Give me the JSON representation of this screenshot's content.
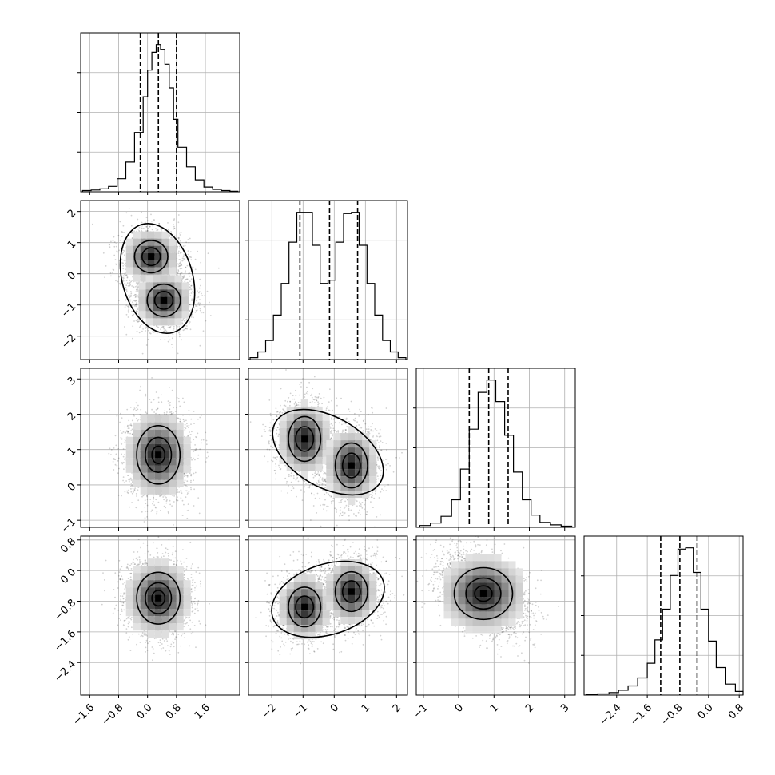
{
  "chart_data": {
    "type": "corner",
    "grid": true,
    "parameters": [
      {
        "mean": 0.3,
        "sd": 0.4,
        "bimodal": false,
        "hist_range": [
          -1.85,
          2.55
        ],
        "quantiles": [
          -0.2,
          0.3,
          0.8
        ],
        "ticks": [
          -1.6,
          -0.8,
          0.0,
          0.8,
          1.6
        ],
        "tick_labels": [
          "−1.6",
          "−0.8",
          "0.0",
          "0.8",
          "1.6"
        ]
      },
      {
        "mean": -0.2,
        "sd": 1.0,
        "bimodal": true,
        "modes": [
          -0.95,
          0.55
        ],
        "mode_sd": 0.45,
        "hist_range": [
          -2.75,
          2.35
        ],
        "quantiles": [
          -1.1,
          -0.15,
          0.75
        ],
        "ticks": [
          -2,
          -1,
          0,
          1,
          2
        ],
        "tick_labels": [
          "−2",
          "−1",
          "0",
          "1",
          "2"
        ]
      },
      {
        "mean": 0.85,
        "sd": 0.55,
        "bimodal": false,
        "hist_range": [
          -1.2,
          3.3
        ],
        "quantiles": [
          0.3,
          0.85,
          1.4
        ],
        "ticks": [
          -1,
          0,
          1,
          2,
          3
        ],
        "tick_labels": [
          "−1",
          "0",
          "1",
          "2",
          "3"
        ]
      },
      {
        "mean": -0.75,
        "sd": 0.45,
        "bimodal": false,
        "hist_range": [
          -3.25,
          0.9
        ],
        "quantiles": [
          -1.25,
          -0.75,
          -0.3
        ],
        "ticks": [
          -2.4,
          -1.6,
          -0.8,
          0.0,
          0.8
        ],
        "tick_labels": [
          "−2.4",
          "−1.6",
          "−0.8",
          "0.0",
          "0.8"
        ]
      }
    ],
    "histograms": [
      {
        "param": 0,
        "bin_edges": [
          -1.8,
          -1.56,
          -1.32,
          -1.08,
          -0.84,
          -0.6,
          -0.36,
          -0.12,
          0.0,
          0.12,
          0.24,
          0.36,
          0.48,
          0.6,
          0.72,
          0.84,
          1.08,
          1.32,
          1.56,
          1.8,
          2.04,
          2.28,
          2.5
        ],
        "counts": [
          2,
          3,
          5,
          9,
          22,
          50,
          100,
          160,
          205,
          235,
          248,
          240,
          215,
          175,
          122,
          75,
          42,
          20,
          8,
          4,
          2,
          1
        ]
      },
      {
        "param": 1,
        "bin_edges": [
          -2.7,
          -2.45,
          -2.2,
          -1.95,
          -1.7,
          -1.45,
          -1.2,
          -0.95,
          -0.7,
          -0.45,
          -0.2,
          0.05,
          0.3,
          0.55,
          0.8,
          1.05,
          1.3,
          1.55,
          1.8,
          2.05,
          2.3
        ],
        "counts": [
          3,
          12,
          30,
          70,
          120,
          185,
          232,
          232,
          180,
          120,
          125,
          185,
          230,
          232,
          180,
          120,
          70,
          30,
          12,
          3
        ]
      },
      {
        "param": 2,
        "bin_edges": [
          -1.1,
          -0.8,
          -0.5,
          -0.2,
          0.05,
          0.3,
          0.55,
          0.8,
          1.05,
          1.3,
          1.55,
          1.8,
          2.05,
          2.3,
          2.6,
          2.9,
          3.2
        ],
        "counts": [
          3,
          7,
          18,
          45,
          95,
          160,
          220,
          240,
          205,
          150,
          90,
          45,
          20,
          8,
          4,
          2
        ]
      },
      {
        "param": 3,
        "bin_edges": [
          -3.2,
          -2.9,
          -2.6,
          -2.35,
          -2.1,
          -1.85,
          -1.6,
          -1.4,
          -1.2,
          -1.0,
          -0.8,
          -0.6,
          -0.4,
          -0.2,
          0.0,
          0.2,
          0.45,
          0.7,
          0.9
        ],
        "counts": [
          1,
          2,
          4,
          8,
          15,
          28,
          52,
          90,
          140,
          195,
          238,
          240,
          200,
          140,
          88,
          45,
          18,
          6
        ]
      }
    ],
    "joint_panels": [
      {
        "x": 0,
        "y": 1,
        "centers": [
          [
            0.1,
            0.55
          ],
          [
            0.45,
            -0.85
          ]
        ],
        "contour_levels": [
          [
            0.2,
            0.2,
            0.38,
            0.32,
            0.58,
            0.5,
            0.8,
            0.7
          ]
        ]
      },
      {
        "x": 0,
        "y": 2,
        "centers": [
          [
            0.3,
            0.85
          ]
        ],
        "contour_levels": [
          [
            0.15,
            0.2,
            0.4,
            0.55,
            0.62,
            0.8
          ]
        ]
      },
      {
        "x": 1,
        "y": 2,
        "centers": [
          [
            -0.95,
            1.3
          ],
          [
            0.55,
            0.55
          ]
        ],
        "contour_levels": [
          [
            0.3,
            0.3,
            0.55,
            0.55,
            0.85,
            0.85
          ]
        ]
      },
      {
        "x": 0,
        "y": 3,
        "centers": [
          [
            0.3,
            -0.72
          ]
        ],
        "contour_levels": [
          [
            0.15,
            0.15,
            0.4,
            0.38,
            0.65,
            0.62
          ]
        ]
      },
      {
        "x": 1,
        "y": 3,
        "centers": [
          [
            -0.95,
            -0.95
          ],
          [
            0.55,
            -0.55
          ]
        ],
        "contour_levels": [
          [
            0.3,
            0.3,
            0.55,
            0.55,
            0.85,
            0.85
          ]
        ]
      },
      {
        "x": 2,
        "y": 3,
        "centers": [
          [
            0.7,
            -0.6
          ]
        ],
        "contour_levels": [
          [
            0.15,
            0.15,
            0.4,
            0.35,
            0.65,
            0.6
          ]
        ]
      }
    ]
  }
}
